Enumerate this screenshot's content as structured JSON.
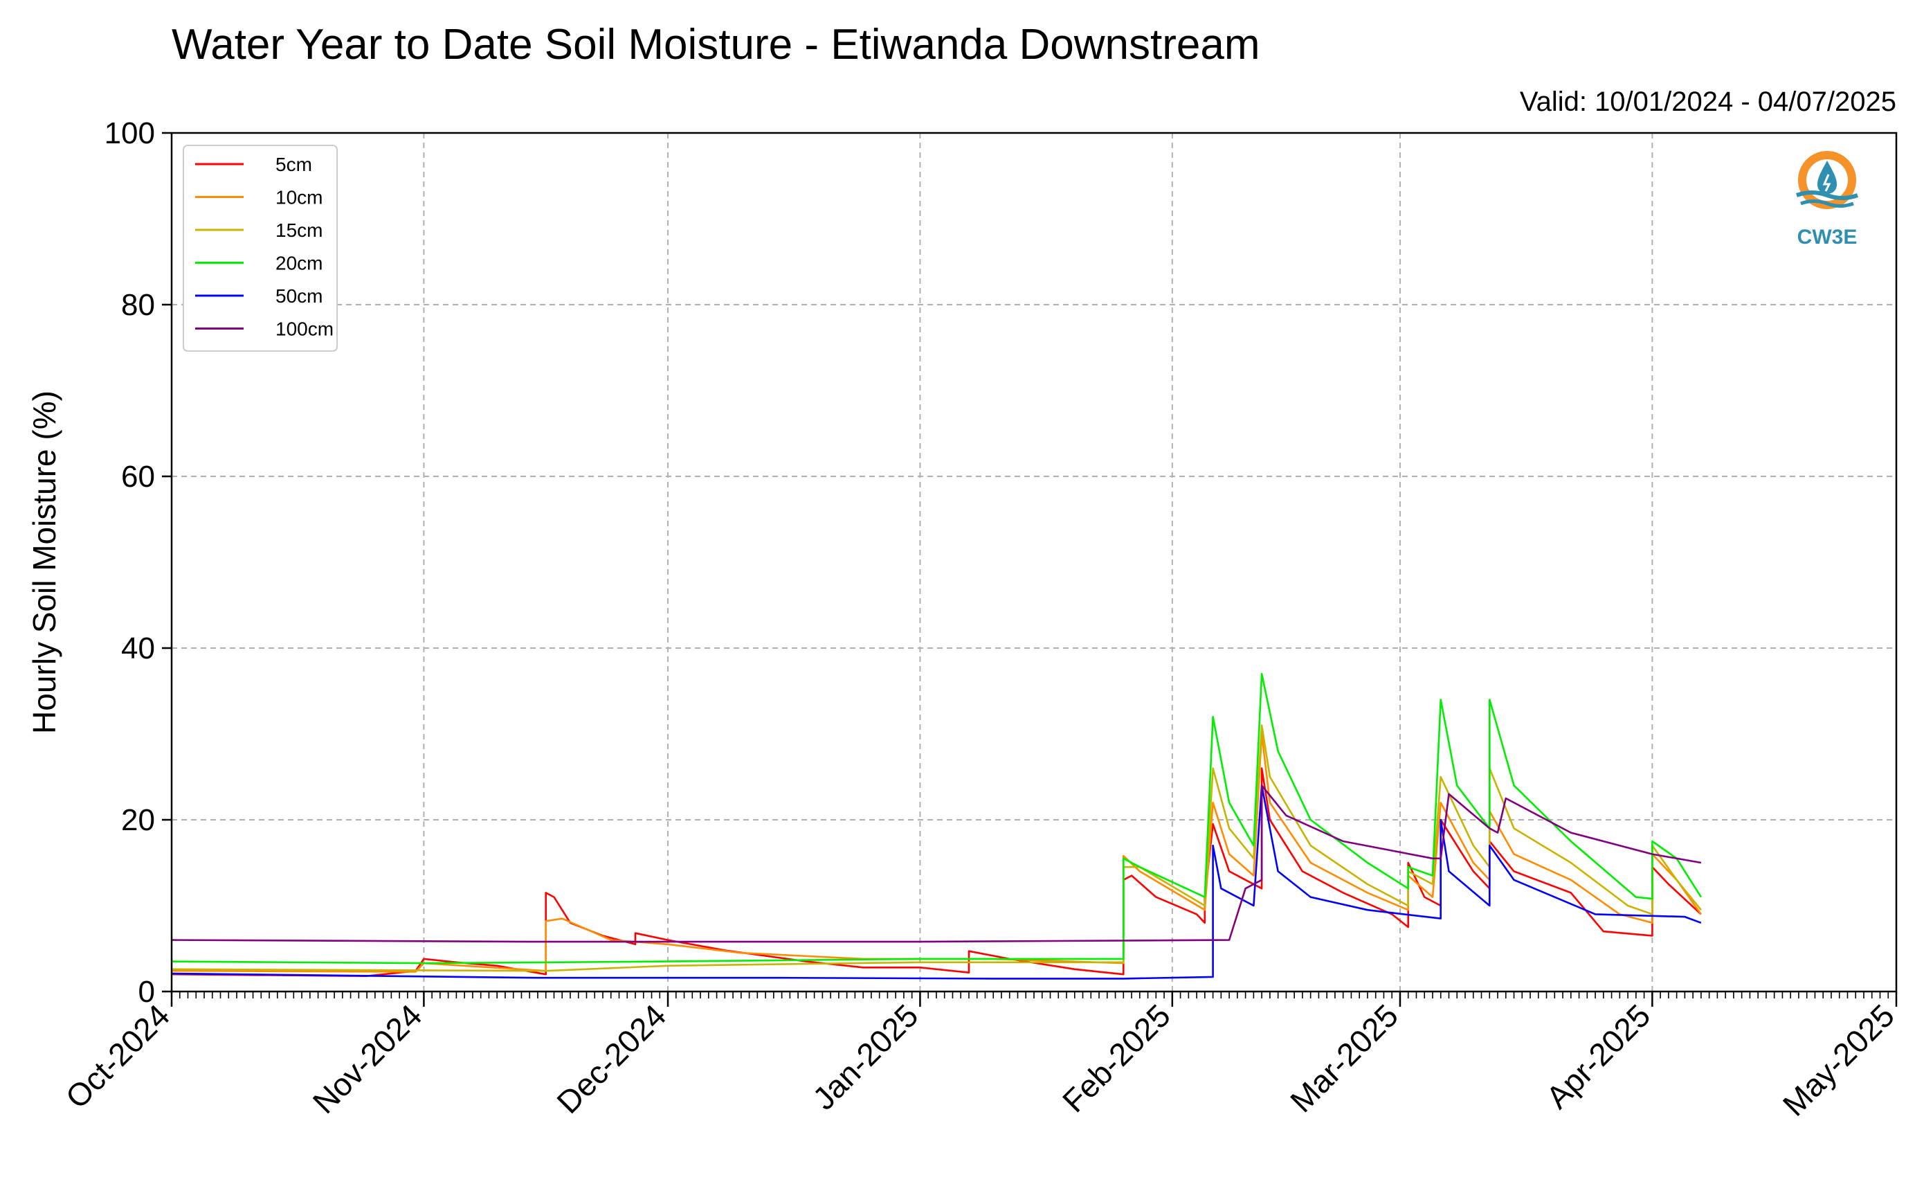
{
  "chart_data": {
    "type": "line",
    "title": "Water Year to Date Soil Moisture - Etiwanda Downstream",
    "subtitle": "Valid: 10/01/2024 - 04/07/2025",
    "xlabel": "",
    "ylabel": "Hourly Soil Moisture (%)",
    "ylim": [
      0,
      100
    ],
    "yticks": [
      0,
      20,
      40,
      60,
      80,
      100
    ],
    "xlim": [
      "2024-10-01",
      "2025-05-01"
    ],
    "xticks": [
      "Oct-2024",
      "Nov-2024",
      "Dec-2024",
      "Jan-2025",
      "Feb-2025",
      "Mar-2025",
      "Apr-2025",
      "May-2025"
    ],
    "xtick_dates": [
      "2024-10-01",
      "2024-11-01",
      "2024-12-01",
      "2025-01-01",
      "2025-02-01",
      "2025-03-01",
      "2025-04-01",
      "2025-05-01"
    ],
    "grid": true,
    "legend_position": "top-left",
    "series": [
      {
        "name": "5cm",
        "color": "#ff0000",
        "points": [
          [
            "2024-10-01",
            2.0
          ],
          [
            "2024-10-25",
            1.8
          ],
          [
            "2024-10-31",
            2.4
          ],
          [
            "2024-11-01",
            3.8
          ],
          [
            "2024-11-05",
            3.4
          ],
          [
            "2024-11-10",
            3.0
          ],
          [
            "2024-11-16",
            2.0
          ],
          [
            "2024-11-16",
            11.5
          ],
          [
            "2024-11-17",
            11.0
          ],
          [
            "2024-11-19",
            8.0
          ],
          [
            "2024-11-23",
            6.5
          ],
          [
            "2024-11-27",
            5.5
          ],
          [
            "2024-11-27",
            6.8
          ],
          [
            "2024-12-01",
            6.0
          ],
          [
            "2024-12-08",
            4.8
          ],
          [
            "2024-12-18",
            3.5
          ],
          [
            "2024-12-25",
            2.8
          ],
          [
            "2025-01-01",
            2.8
          ],
          [
            "2025-01-07",
            2.2
          ],
          [
            "2025-01-07",
            4.7
          ],
          [
            "2025-01-12",
            3.8
          ],
          [
            "2025-01-20",
            2.6
          ],
          [
            "2025-01-26",
            2.0
          ],
          [
            "2025-01-26",
            13.0
          ],
          [
            "2025-01-27",
            13.5
          ],
          [
            "2025-01-30",
            11.0
          ],
          [
            "2025-02-04",
            9.0
          ],
          [
            "2025-02-05",
            8.0
          ],
          [
            "2025-02-05",
            11.0
          ],
          [
            "2025-02-06",
            19.5
          ],
          [
            "2025-02-08",
            14.0
          ],
          [
            "2025-02-12",
            12.0
          ],
          [
            "2025-02-12",
            26.0
          ],
          [
            "2025-02-13",
            20.0
          ],
          [
            "2025-02-17",
            14.0
          ],
          [
            "2025-02-22",
            11.5
          ],
          [
            "2025-02-28",
            9.0
          ],
          [
            "2025-03-02",
            7.5
          ],
          [
            "2025-03-02",
            15.0
          ],
          [
            "2025-03-04",
            11.0
          ],
          [
            "2025-03-06",
            10.0
          ],
          [
            "2025-03-06",
            20.0
          ],
          [
            "2025-03-10",
            14.0
          ],
          [
            "2025-03-12",
            12.0
          ],
          [
            "2025-03-12",
            17.5
          ],
          [
            "2025-03-15",
            14.0
          ],
          [
            "2025-03-22",
            11.5
          ],
          [
            "2025-03-26",
            7.0
          ],
          [
            "2025-04-01",
            6.5
          ],
          [
            "2025-04-01",
            14.5
          ],
          [
            "2025-04-03",
            12.5
          ],
          [
            "2025-04-07",
            9.0
          ]
        ]
      },
      {
        "name": "10cm",
        "color": "#ff8c00",
        "points": [
          [
            "2024-10-01",
            2.4
          ],
          [
            "2024-10-31",
            2.3
          ],
          [
            "2024-11-01",
            3.3
          ],
          [
            "2024-11-16",
            2.4
          ],
          [
            "2024-11-16",
            8.2
          ],
          [
            "2024-11-18",
            8.5
          ],
          [
            "2024-11-24",
            6.0
          ],
          [
            "2024-12-01",
            5.5
          ],
          [
            "2024-12-10",
            4.5
          ],
          [
            "2024-12-25",
            3.8
          ],
          [
            "2025-01-10",
            3.8
          ],
          [
            "2025-01-26",
            3.3
          ],
          [
            "2025-01-26",
            15.8
          ],
          [
            "2025-01-28",
            14.0
          ],
          [
            "2025-02-05",
            9.5
          ],
          [
            "2025-02-06",
            22.0
          ],
          [
            "2025-02-08",
            16.0
          ],
          [
            "2025-02-11",
            13.5
          ],
          [
            "2025-02-12",
            30.0
          ],
          [
            "2025-02-13",
            22.0
          ],
          [
            "2025-02-18",
            15.0
          ],
          [
            "2025-02-25",
            11.5
          ],
          [
            "2025-03-02",
            9.5
          ],
          [
            "2025-03-02",
            13.5
          ],
          [
            "2025-03-05",
            11.0
          ],
          [
            "2025-03-06",
            22.0
          ],
          [
            "2025-03-10",
            15.0
          ],
          [
            "2025-03-12",
            13.0
          ],
          [
            "2025-03-12",
            21.0
          ],
          [
            "2025-03-15",
            16.0
          ],
          [
            "2025-03-22",
            13.0
          ],
          [
            "2025-03-28",
            9.0
          ],
          [
            "2025-04-01",
            8.0
          ],
          [
            "2025-04-01",
            16.0
          ],
          [
            "2025-04-04",
            13.0
          ],
          [
            "2025-04-07",
            9.0
          ]
        ]
      },
      {
        "name": "15cm",
        "color": "#c8b400",
        "points": [
          [
            "2024-10-01",
            2.6
          ],
          [
            "2024-11-16",
            2.4
          ],
          [
            "2024-12-01",
            3.0
          ],
          [
            "2025-01-01",
            3.4
          ],
          [
            "2025-01-26",
            3.4
          ],
          [
            "2025-01-26",
            14.5
          ],
          [
            "2025-01-28",
            14.5
          ],
          [
            "2025-02-05",
            10.0
          ],
          [
            "2025-02-06",
            26.0
          ],
          [
            "2025-02-08",
            19.0
          ],
          [
            "2025-02-11",
            15.5
          ],
          [
            "2025-02-12",
            31.0
          ],
          [
            "2025-02-13",
            25.0
          ],
          [
            "2025-02-18",
            17.0
          ],
          [
            "2025-02-25",
            12.5
          ],
          [
            "2025-03-02",
            10.0
          ],
          [
            "2025-03-02",
            14.0
          ],
          [
            "2025-03-05",
            12.5
          ],
          [
            "2025-03-06",
            25.0
          ],
          [
            "2025-03-10",
            17.0
          ],
          [
            "2025-03-12",
            14.5
          ],
          [
            "2025-03-12",
            26.0
          ],
          [
            "2025-03-15",
            19.0
          ],
          [
            "2025-03-22",
            15.0
          ],
          [
            "2025-03-29",
            10.0
          ],
          [
            "2025-04-01",
            9.0
          ],
          [
            "2025-04-01",
            17.0
          ],
          [
            "2025-04-04",
            13.0
          ],
          [
            "2025-04-07",
            9.5
          ]
        ]
      },
      {
        "name": "20cm",
        "color": "#00ee00",
        "points": [
          [
            "2024-10-01",
            3.5
          ],
          [
            "2024-11-01",
            3.3
          ],
          [
            "2024-12-01",
            3.5
          ],
          [
            "2025-01-01",
            3.8
          ],
          [
            "2025-01-26",
            3.8
          ],
          [
            "2025-01-26",
            15.5
          ],
          [
            "2025-01-28",
            14.5
          ],
          [
            "2025-02-05",
            11.0
          ],
          [
            "2025-02-06",
            32.0
          ],
          [
            "2025-02-08",
            22.0
          ],
          [
            "2025-02-11",
            17.0
          ],
          [
            "2025-02-12",
            37.0
          ],
          [
            "2025-02-14",
            28.0
          ],
          [
            "2025-02-18",
            20.0
          ],
          [
            "2025-02-25",
            15.0
          ],
          [
            "2025-03-02",
            12.0
          ],
          [
            "2025-03-02",
            14.5
          ],
          [
            "2025-03-05",
            13.5
          ],
          [
            "2025-03-06",
            34.0
          ],
          [
            "2025-03-08",
            24.0
          ],
          [
            "2025-03-12",
            19.0
          ],
          [
            "2025-03-12",
            34.0
          ],
          [
            "2025-03-15",
            24.0
          ],
          [
            "2025-03-22",
            17.5
          ],
          [
            "2025-03-30",
            11.0
          ],
          [
            "2025-04-01",
            10.8
          ],
          [
            "2025-04-01",
            17.5
          ],
          [
            "2025-04-04",
            15.5
          ],
          [
            "2025-04-07",
            11.0
          ]
        ]
      },
      {
        "name": "50cm",
        "color": "#0000ff",
        "points": [
          [
            "2024-10-01",
            2.1
          ],
          [
            "2024-11-15",
            1.6
          ],
          [
            "2024-12-15",
            1.6
          ],
          [
            "2025-01-10",
            1.5
          ],
          [
            "2025-01-26",
            1.5
          ],
          [
            "2025-02-06",
            1.7
          ],
          [
            "2025-02-06",
            17.0
          ],
          [
            "2025-02-07",
            12.0
          ],
          [
            "2025-02-11",
            10.0
          ],
          [
            "2025-02-12",
            24.0
          ],
          [
            "2025-02-14",
            14.0
          ],
          [
            "2025-02-18",
            11.0
          ],
          [
            "2025-02-25",
            9.5
          ],
          [
            "2025-03-06",
            8.5
          ],
          [
            "2025-03-06",
            20.0
          ],
          [
            "2025-03-07",
            14.0
          ],
          [
            "2025-03-12",
            10.0
          ],
          [
            "2025-03-12",
            17.0
          ],
          [
            "2025-03-15",
            13.0
          ],
          [
            "2025-03-25",
            9.0
          ],
          [
            "2025-04-05",
            8.7
          ],
          [
            "2025-04-07",
            8.0
          ]
        ]
      },
      {
        "name": "100cm",
        "color": "#800080",
        "points": [
          [
            "2024-10-01",
            6.0
          ],
          [
            "2024-11-15",
            5.8
          ],
          [
            "2025-01-01",
            5.8
          ],
          [
            "2025-02-08",
            6.0
          ],
          [
            "2025-02-10",
            12.0
          ],
          [
            "2025-02-12",
            13.0
          ],
          [
            "2025-02-12",
            24.0
          ],
          [
            "2025-02-15",
            20.5
          ],
          [
            "2025-02-22",
            17.5
          ],
          [
            "2025-03-05",
            15.5
          ],
          [
            "2025-03-06",
            15.5
          ],
          [
            "2025-03-07",
            23.0
          ],
          [
            "2025-03-12",
            19.0
          ],
          [
            "2025-03-13",
            18.5
          ],
          [
            "2025-03-14",
            22.5
          ],
          [
            "2025-03-22",
            18.5
          ],
          [
            "2025-04-01",
            16.0
          ],
          [
            "2025-04-07",
            15.0
          ]
        ]
      }
    ]
  },
  "logo": {
    "text": "CW3E",
    "colors": {
      "ring": "#f5922a",
      "waves": "#2e8fb0",
      "drop": "#2e8fb0"
    }
  }
}
